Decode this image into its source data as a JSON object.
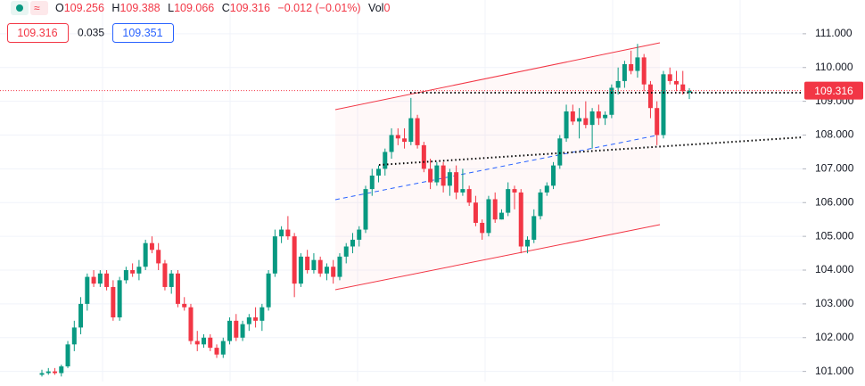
{
  "header": {
    "open_label": "O",
    "open": "109.256",
    "high_label": "H",
    "high": "109.388",
    "low_label": "L",
    "low": "109.066",
    "close_label": "C",
    "close": "109.316",
    "change": "−0.012 (−0.01%)",
    "volume_label": "Vol",
    "volume": "0",
    "bid": "109.316",
    "spread": "0.035",
    "ask": "109.351"
  },
  "chart_data": {
    "type": "candlestick",
    "up_color": "#089981",
    "down_color": "#f23645",
    "ylim": [
      100.7,
      112.0
    ],
    "yticks": [
      {
        "value": 101,
        "label": "101.000"
      },
      {
        "value": 102,
        "label": "102.000"
      },
      {
        "value": 103,
        "label": "103.000"
      },
      {
        "value": 104,
        "label": "104.000"
      },
      {
        "value": 105,
        "label": "105.000"
      },
      {
        "value": 106,
        "label": "106.000"
      },
      {
        "value": 107,
        "label": "107.000"
      },
      {
        "value": 108,
        "label": "108.000"
      },
      {
        "value": 109,
        "label": "109.000"
      },
      {
        "value": 110,
        "label": "110.000"
      },
      {
        "value": 111,
        "label": "111.000"
      }
    ],
    "grid": true,
    "last_price": {
      "value": 109.316,
      "label": "109.316"
    },
    "series": [
      {
        "open": [
          100.9,
          100.95,
          101.0,
          100.95,
          101.15,
          101.8,
          102.3,
          103.0,
          103.8,
          103.6,
          103.9,
          103.5,
          102.6,
          103.7,
          104.0,
          103.9,
          104.1,
          104.8,
          104.6,
          104.2,
          103.5,
          103.9,
          103.0,
          102.9,
          101.9,
          101.8,
          102.0,
          101.7,
          101.5,
          101.9,
          102.5,
          102.0,
          102.4,
          102.6,
          102.5,
          102.9,
          103.9,
          105.0,
          105.2,
          105.0,
          103.6,
          104.4,
          104.0,
          104.3,
          103.9,
          104.1,
          103.8,
          104.4,
          104.7,
          104.9,
          105.2,
          106.4,
          106.8,
          107.0,
          107.5,
          108.0,
          107.9,
          107.8,
          108.5,
          107.7,
          107.0,
          106.6,
          107.1,
          106.5,
          106.9,
          106.3,
          106.4,
          106.0,
          105.4,
          105.1,
          106.1,
          105.5,
          105.7,
          106.4,
          106.3,
          104.7,
          104.9,
          105.6,
          106.3,
          106.5,
          107.1,
          107.9,
          108.7,
          108.4,
          108.5,
          108.3,
          108.7,
          108.5,
          108.6,
          109.4,
          109.6,
          110.1,
          109.9,
          110.3,
          109.5,
          108.8,
          108.0,
          109.8,
          109.6,
          109.5,
          109.256
        ],
        "high": [
          101.05,
          101.1,
          101.1,
          101.2,
          101.9,
          102.5,
          103.2,
          103.9,
          104.0,
          104.0,
          104.0,
          103.7,
          103.8,
          104.1,
          104.2,
          104.3,
          104.9,
          105.0,
          104.8,
          104.3,
          104.0,
          104.0,
          103.2,
          103.0,
          102.2,
          102.1,
          102.1,
          101.8,
          102.0,
          102.6,
          102.7,
          102.5,
          102.7,
          102.9,
          103.0,
          104.0,
          105.2,
          105.3,
          105.6,
          105.1,
          104.5,
          104.6,
          104.5,
          104.4,
          104.2,
          104.3,
          104.5,
          104.8,
          105.1,
          105.3,
          106.5,
          107.0,
          107.1,
          107.6,
          108.2,
          108.2,
          108.2,
          109.1,
          108.6,
          107.8,
          107.3,
          107.2,
          107.2,
          107.0,
          107.1,
          107.0,
          106.5,
          106.2,
          105.5,
          106.2,
          106.3,
          105.8,
          106.6,
          106.5,
          106.4,
          105.0,
          105.8,
          106.4,
          106.6,
          107.2,
          108.0,
          108.9,
          108.9,
          108.8,
          109.0,
          108.8,
          108.9,
          108.7,
          109.5,
          110.0,
          110.2,
          110.5,
          110.7,
          110.4,
          109.6,
          109.0,
          109.9,
          110.0,
          109.9,
          109.9,
          109.388
        ],
        "low": [
          100.85,
          100.9,
          100.9,
          100.85,
          101.1,
          101.6,
          102.1,
          102.8,
          103.5,
          103.5,
          103.4,
          102.5,
          102.5,
          103.6,
          103.8,
          103.7,
          104.0,
          104.5,
          104.0,
          103.4,
          103.3,
          102.9,
          102.8,
          101.8,
          101.6,
          101.7,
          101.6,
          101.4,
          101.4,
          101.8,
          101.9,
          101.9,
          102.2,
          102.3,
          102.2,
          102.8,
          103.8,
          104.8,
          104.9,
          103.2,
          103.5,
          103.9,
          103.9,
          103.8,
          103.7,
          103.6,
          103.7,
          104.2,
          104.5,
          104.7,
          105.1,
          106.2,
          106.6,
          106.8,
          107.3,
          107.7,
          107.6,
          107.7,
          107.6,
          106.9,
          106.4,
          106.5,
          106.3,
          106.2,
          106.1,
          106.2,
          105.9,
          105.3,
          104.9,
          105.0,
          105.4,
          105.5,
          105.6,
          105.8,
          104.5,
          104.5,
          104.8,
          105.5,
          106.2,
          106.4,
          107.0,
          107.8,
          108.3,
          107.9,
          108.2,
          107.6,
          108.3,
          108.3,
          108.5,
          109.2,
          109.4,
          109.8,
          109.7,
          109.3,
          108.5,
          107.7,
          107.9,
          109.5,
          109.3,
          109.2,
          109.066
        ],
        "close": [
          100.95,
          101.0,
          100.95,
          101.15,
          101.8,
          102.3,
          103.0,
          103.8,
          103.6,
          103.9,
          103.5,
          102.6,
          103.7,
          104.0,
          103.9,
          104.1,
          104.8,
          104.6,
          104.2,
          103.5,
          103.9,
          103.0,
          102.9,
          101.9,
          101.8,
          102.0,
          101.7,
          101.5,
          101.9,
          102.5,
          102.0,
          102.4,
          102.6,
          102.5,
          102.9,
          103.9,
          105.0,
          105.2,
          105.0,
          103.6,
          104.4,
          104.0,
          104.3,
          103.9,
          104.1,
          103.8,
          104.4,
          104.7,
          104.9,
          105.2,
          106.4,
          106.8,
          107.0,
          107.5,
          108.0,
          107.9,
          107.8,
          108.5,
          107.7,
          107.0,
          106.6,
          107.1,
          106.5,
          106.9,
          106.3,
          106.4,
          106.0,
          105.4,
          105.1,
          106.1,
          105.5,
          105.7,
          106.4,
          106.3,
          104.7,
          104.9,
          105.6,
          106.3,
          106.5,
          107.1,
          107.9,
          108.7,
          108.4,
          108.5,
          108.3,
          108.7,
          108.5,
          108.6,
          109.4,
          109.6,
          110.1,
          109.9,
          110.3,
          109.5,
          108.8,
          108.0,
          109.8,
          109.6,
          109.5,
          109.3,
          109.316
        ]
      }
    ]
  }
}
